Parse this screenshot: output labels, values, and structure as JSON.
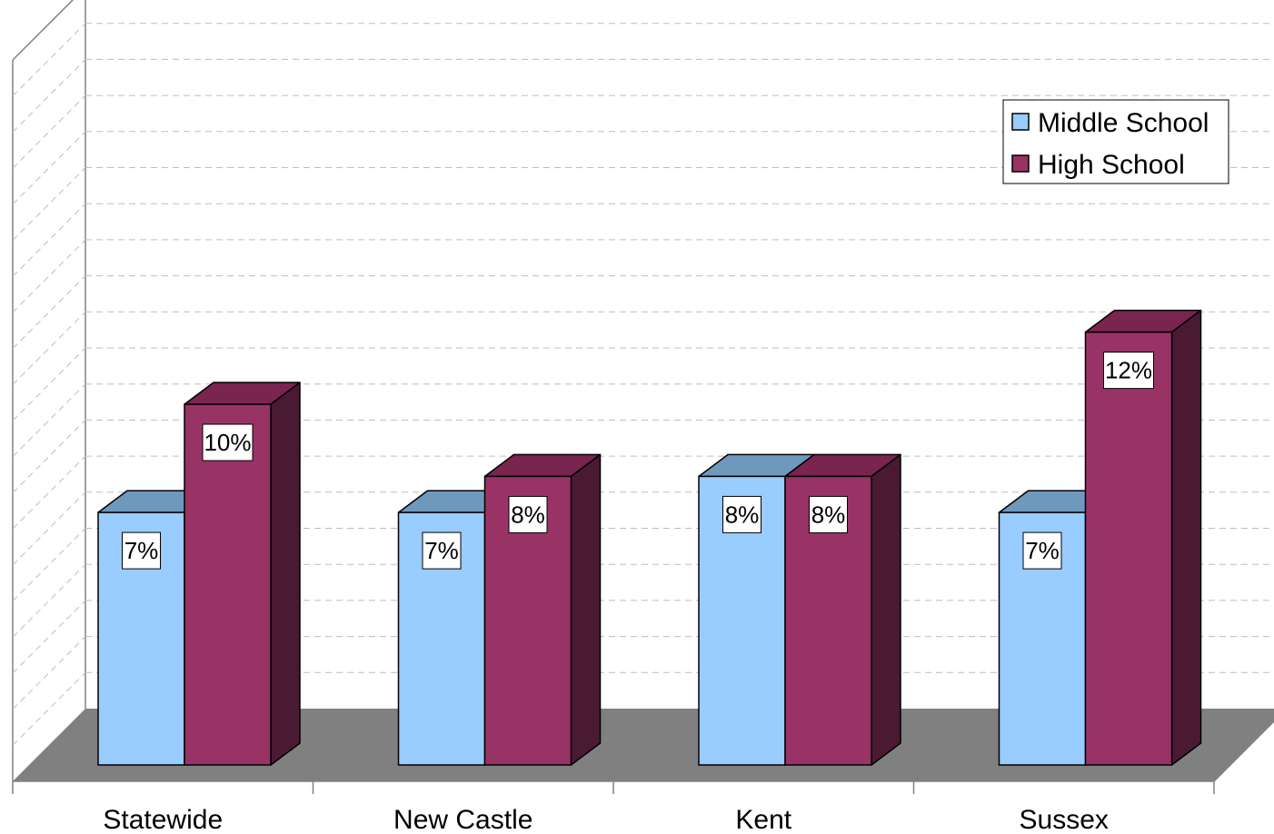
{
  "chart_data": {
    "type": "bar",
    "categories": [
      "Statewide",
      "New Castle",
      "Kent",
      "Sussex"
    ],
    "series": [
      {
        "name": "Middle School",
        "values": [
          7,
          7,
          8,
          7
        ],
        "labels": [
          "7%",
          "7%",
          "8%",
          "7%"
        ]
      },
      {
        "name": "High School",
        "values": [
          10,
          8,
          8,
          12
        ],
        "labels": [
          "10%",
          "8%",
          "8%",
          "12%"
        ]
      }
    ],
    "ylim": [
      0,
      20
    ],
    "grid": true,
    "legend_position": "top-right",
    "colors": {
      "Middle School": {
        "front": "#99ccff",
        "top": "#6f98bd",
        "side": "#4d6f91"
      },
      "High School": {
        "front": "#993366",
        "top": "#7a2450",
        "side": "#4a1a33"
      },
      "floor": "#808080",
      "grid": "#bdbdbd",
      "wall": "#808080"
    }
  }
}
